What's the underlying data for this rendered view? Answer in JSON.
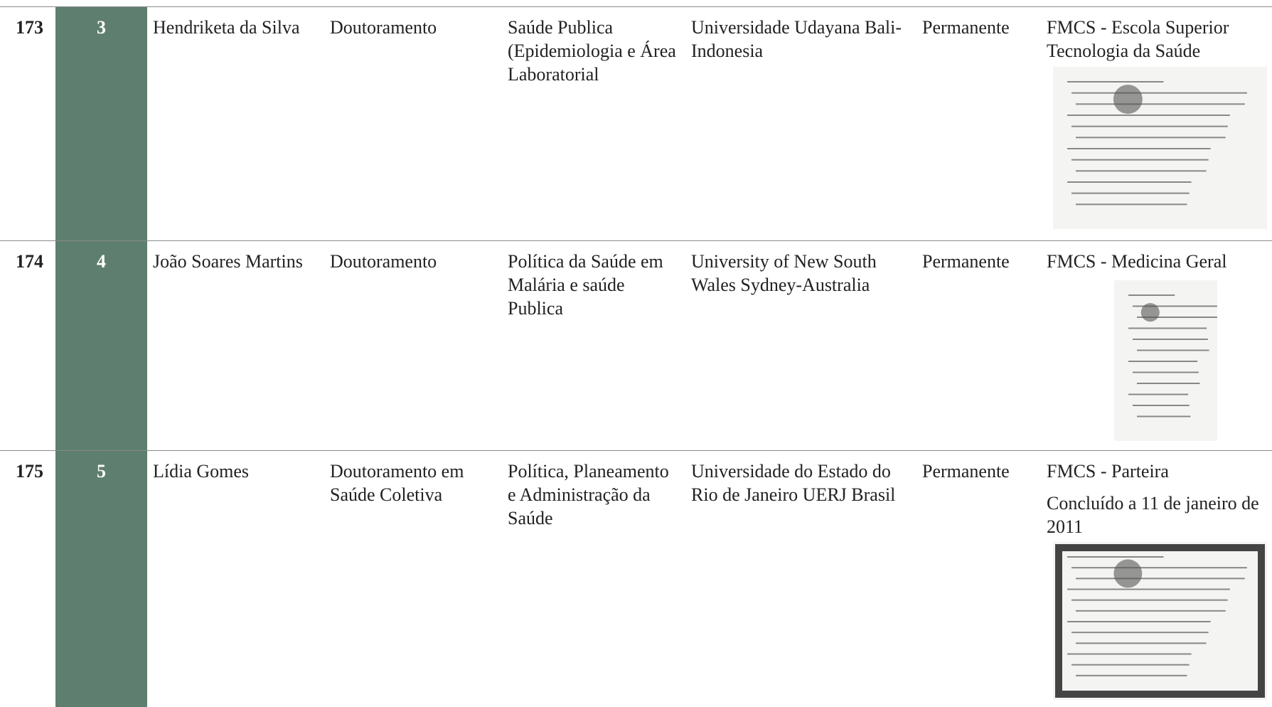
{
  "table": {
    "rows": [
      {
        "number": "173",
        "order": "3",
        "name": "Hendriketa da Silva",
        "degree": "Doutoramento",
        "field": "Saúde Publica (Epidemiologia e Área Laboratorial",
        "university": "Universidade Udayana Bali-Indonesia",
        "status": "Permanente",
        "faculty": "FMCS - Escola Superior Tecnologia da Saúde"
      },
      {
        "number": "174",
        "order": "4",
        "name": "João Soares Martins",
        "degree": "Doutoramento",
        "field": "Política da Saúde em Malária e saúde Publica",
        "university": "University of New South Wales Sydney-Australia",
        "status": "Permanente",
        "faculty": "FMCS - Medicina Geral"
      },
      {
        "number": "175",
        "order": "5",
        "name": "Lídia Gomes",
        "degree": "Doutoramento em Saúde Coletiva",
        "field": "Política, Planeamento e Administração da Saúde",
        "university": "Universidade do Estado do Rio de Janeiro UERJ Brasil",
        "status": "Permanente",
        "faculty": "FMCS - Parteira",
        "note": "Concluído a 11 de janeiro de 2011"
      }
    ]
  }
}
